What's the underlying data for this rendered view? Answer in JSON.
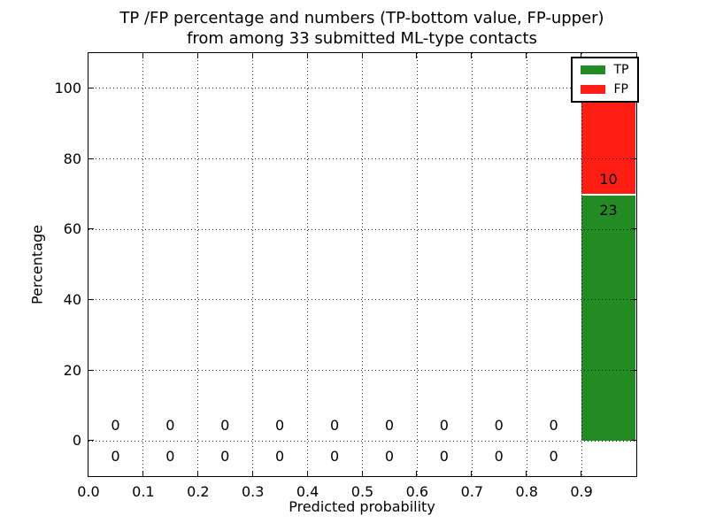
{
  "figure": {
    "title_line1": "TP /FP percentage and numbers (TP-bottom value, FP-upper)",
    "title_line2": "from among 33 submitted ML-type contacts"
  },
  "chart_data": {
    "type": "bar",
    "stacked": true,
    "title": "TP /FP percentage and numbers (TP-bottom value, FP-upper)\nfrom among 33 submitted ML-type contacts",
    "xlabel": "Predicted probability",
    "ylabel": "Percentage",
    "total_contacts": 33,
    "bin_edges": [
      0.0,
      0.1,
      0.2,
      0.3,
      0.4,
      0.5,
      0.6,
      0.7,
      0.8,
      0.9,
      1.0
    ],
    "series": [
      {
        "name": "TP",
        "role": "bottom",
        "color": "#228b22",
        "counts": [
          0,
          0,
          0,
          0,
          0,
          0,
          0,
          0,
          0,
          23
        ]
      },
      {
        "name": "FP",
        "role": "upper",
        "color": "#ff1d14",
        "counts": [
          0,
          0,
          0,
          0,
          0,
          0,
          0,
          0,
          0,
          10
        ]
      }
    ],
    "bar_percentages": {
      "TP": 69.7,
      "FP": 30.3
    },
    "xlim": [
      0.0,
      1.0
    ],
    "ylim": [
      -10,
      110
    ],
    "xticks": [
      0.0,
      0.1,
      0.2,
      0.3,
      0.4,
      0.5,
      0.6,
      0.7,
      0.8,
      0.9
    ],
    "xtick_labels": [
      "0.0",
      "0.1",
      "0.2",
      "0.3",
      "0.4",
      "0.5",
      "0.6",
      "0.7",
      "0.8",
      "0.9"
    ],
    "yticks": [
      0,
      20,
      40,
      60,
      80,
      100
    ],
    "ytick_labels": [
      "0",
      "20",
      "40",
      "60",
      "80",
      "100"
    ],
    "grid": "dotted",
    "annotation_color": "#000000",
    "legend": {
      "position": "upper right",
      "entries": [
        {
          "label": "TP",
          "color": "#228b22"
        },
        {
          "label": "FP",
          "color": "#ff1d14"
        }
      ]
    }
  }
}
